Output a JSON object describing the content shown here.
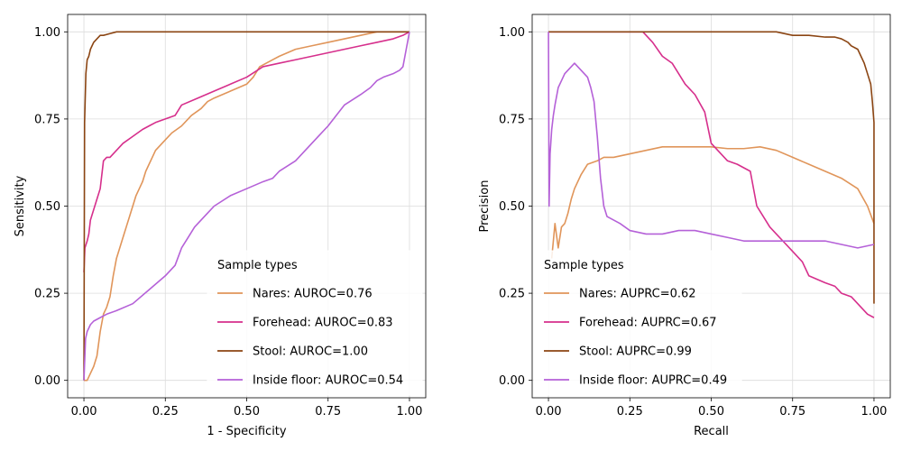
{
  "chart_data": [
    {
      "type": "line",
      "title": "",
      "xlabel": "1 - Specificity",
      "ylabel": "Sensitivity",
      "xlim": [
        -0.05,
        1.05
      ],
      "ylim": [
        -0.05,
        1.05
      ],
      "xticks": [
        "0.00",
        "0.25",
        "0.50",
        "0.75",
        "1.00"
      ],
      "yticks": [
        "0.00",
        "0.25",
        "0.50",
        "0.75",
        "1.00"
      ],
      "grid": true,
      "legend_title": "Sample types",
      "legend_position": "lower-right",
      "series": [
        {
          "name": "Nares: AUROC=0.76",
          "color": "#e0955a",
          "x": [
            0,
            0.01,
            0.02,
            0.03,
            0.04,
            0.05,
            0.06,
            0.07,
            0.08,
            0.09,
            0.1,
            0.11,
            0.12,
            0.13,
            0.14,
            0.15,
            0.16,
            0.17,
            0.18,
            0.19,
            0.2,
            0.21,
            0.22,
            0.23,
            0.25,
            0.27,
            0.3,
            0.33,
            0.36,
            0.38,
            0.4,
            0.45,
            0.5,
            0.52,
            0.54,
            0.56,
            0.58,
            0.6,
            0.65,
            0.7,
            0.75,
            0.8,
            0.85,
            0.9,
            0.95,
            1.0
          ],
          "y": [
            0,
            0,
            0.02,
            0.04,
            0.07,
            0.14,
            0.19,
            0.21,
            0.24,
            0.3,
            0.35,
            0.38,
            0.41,
            0.44,
            0.47,
            0.5,
            0.53,
            0.55,
            0.57,
            0.6,
            0.62,
            0.64,
            0.66,
            0.67,
            0.69,
            0.71,
            0.73,
            0.76,
            0.78,
            0.8,
            0.81,
            0.83,
            0.85,
            0.87,
            0.9,
            0.91,
            0.92,
            0.93,
            0.95,
            0.96,
            0.97,
            0.98,
            0.99,
            1.0,
            1.0,
            1.0
          ]
        },
        {
          "name": "Forehead: AUROC=0.83",
          "color": "#d62f8c",
          "x": [
            0,
            0.003,
            0.01,
            0.015,
            0.02,
            0.03,
            0.04,
            0.05,
            0.06,
            0.07,
            0.08,
            0.1,
            0.12,
            0.15,
            0.18,
            0.2,
            0.22,
            0.25,
            0.28,
            0.3,
            0.35,
            0.4,
            0.45,
            0.5,
            0.55,
            0.6,
            0.65,
            0.7,
            0.75,
            0.8,
            0.85,
            0.9,
            0.95,
            0.98,
            1.0
          ],
          "y": [
            0.31,
            0.38,
            0.4,
            0.42,
            0.46,
            0.49,
            0.52,
            0.55,
            0.63,
            0.64,
            0.64,
            0.66,
            0.68,
            0.7,
            0.72,
            0.73,
            0.74,
            0.75,
            0.76,
            0.79,
            0.81,
            0.83,
            0.85,
            0.87,
            0.9,
            0.91,
            0.92,
            0.93,
            0.94,
            0.95,
            0.96,
            0.97,
            0.98,
            0.99,
            1.0
          ]
        },
        {
          "name": "Stool: AUROC=1.00",
          "color": "#8b4513",
          "x": [
            0,
            0.002,
            0.004,
            0.006,
            0.008,
            0.01,
            0.015,
            0.02,
            0.025,
            0.03,
            0.04,
            0.05,
            0.06,
            0.08,
            0.1,
            0.15,
            0.2,
            0.5,
            1.0
          ],
          "y": [
            0,
            0.74,
            0.81,
            0.88,
            0.9,
            0.92,
            0.93,
            0.95,
            0.96,
            0.97,
            0.98,
            0.99,
            0.99,
            0.995,
            1.0,
            1.0,
            1.0,
            1.0,
            1.0
          ]
        },
        {
          "name": "Inside floor: AUROC=0.54",
          "color": "#b561d8",
          "x": [
            0,
            0.005,
            0.01,
            0.015,
            0.02,
            0.03,
            0.05,
            0.07,
            0.1,
            0.15,
            0.2,
            0.25,
            0.28,
            0.3,
            0.32,
            0.34,
            0.36,
            0.38,
            0.4,
            0.45,
            0.5,
            0.55,
            0.58,
            0.6,
            0.65,
            0.68,
            0.7,
            0.72,
            0.75,
            0.8,
            0.85,
            0.88,
            0.9,
            0.92,
            0.95,
            0.97,
            0.98,
            0.99,
            1.0
          ],
          "y": [
            0,
            0.12,
            0.14,
            0.15,
            0.16,
            0.17,
            0.18,
            0.19,
            0.2,
            0.22,
            0.26,
            0.3,
            0.33,
            0.38,
            0.41,
            0.44,
            0.46,
            0.48,
            0.5,
            0.53,
            0.55,
            0.57,
            0.58,
            0.6,
            0.63,
            0.66,
            0.68,
            0.7,
            0.73,
            0.79,
            0.82,
            0.84,
            0.86,
            0.87,
            0.88,
            0.89,
            0.9,
            0.95,
            1.0
          ]
        }
      ]
    },
    {
      "type": "line",
      "title": "",
      "xlabel": "Recall",
      "ylabel": "Precision",
      "xlim": [
        -0.05,
        1.05
      ],
      "ylim": [
        -0.05,
        1.05
      ],
      "xticks": [
        "0.00",
        "0.25",
        "0.50",
        "0.75",
        "1.00"
      ],
      "yticks": [
        "0.00",
        "0.25",
        "0.50",
        "0.75",
        "1.00"
      ],
      "grid": true,
      "legend_title": "Sample types",
      "legend_position": "lower-left",
      "series": [
        {
          "name": "Nares: AUPRC=0.62",
          "color": "#e0955a",
          "x": [
            0.01,
            0.015,
            0.02,
            0.03,
            0.04,
            0.05,
            0.06,
            0.07,
            0.08,
            0.1,
            0.12,
            0.15,
            0.17,
            0.2,
            0.25,
            0.3,
            0.35,
            0.4,
            0.45,
            0.5,
            0.55,
            0.6,
            0.65,
            0.7,
            0.75,
            0.8,
            0.85,
            0.9,
            0.95,
            0.98,
            1.0
          ],
          "y": [
            0.35,
            0.4,
            0.45,
            0.38,
            0.44,
            0.45,
            0.48,
            0.52,
            0.55,
            0.59,
            0.62,
            0.63,
            0.64,
            0.64,
            0.65,
            0.66,
            0.67,
            0.67,
            0.67,
            0.67,
            0.665,
            0.665,
            0.67,
            0.66,
            0.64,
            0.62,
            0.6,
            0.58,
            0.55,
            0.5,
            0.45
          ]
        },
        {
          "name": "Forehead: AUPRC=0.67",
          "color": "#d62f8c",
          "x": [
            0,
            0.05,
            0.1,
            0.2,
            0.29,
            0.3,
            0.32,
            0.35,
            0.38,
            0.4,
            0.42,
            0.45,
            0.48,
            0.5,
            0.52,
            0.55,
            0.58,
            0.6,
            0.62,
            0.64,
            0.66,
            0.68,
            0.7,
            0.72,
            0.75,
            0.78,
            0.8,
            0.85,
            0.88,
            0.9,
            0.93,
            0.95,
            0.98,
            1.0
          ],
          "y": [
            1.0,
            1.0,
            1.0,
            1.0,
            1.0,
            0.99,
            0.97,
            0.93,
            0.91,
            0.88,
            0.85,
            0.82,
            0.77,
            0.68,
            0.66,
            0.63,
            0.62,
            0.61,
            0.6,
            0.5,
            0.47,
            0.44,
            0.42,
            0.4,
            0.37,
            0.34,
            0.3,
            0.28,
            0.27,
            0.25,
            0.24,
            0.22,
            0.19,
            0.18
          ]
        },
        {
          "name": "Stool: AUPRC=0.99",
          "color": "#8b4513",
          "x": [
            0,
            0.1,
            0.3,
            0.5,
            0.7,
            0.75,
            0.8,
            0.85,
            0.88,
            0.9,
            0.92,
            0.93,
            0.95,
            0.96,
            0.97,
            0.98,
            0.99,
            0.995,
            1.0,
            1.0,
            1.0
          ],
          "y": [
            1.0,
            1.0,
            1.0,
            1.0,
            1.0,
            0.99,
            0.99,
            0.985,
            0.985,
            0.98,
            0.97,
            0.96,
            0.95,
            0.93,
            0.91,
            0.88,
            0.85,
            0.8,
            0.74,
            0.5,
            0.22
          ]
        },
        {
          "name": "Inside floor: AUPRC=0.49",
          "color": "#b561d8",
          "x": [
            0,
            0.002,
            0.005,
            0.01,
            0.015,
            0.02,
            0.03,
            0.04,
            0.05,
            0.06,
            0.07,
            0.08,
            0.09,
            0.1,
            0.11,
            0.12,
            0.13,
            0.14,
            0.15,
            0.16,
            0.17,
            0.18,
            0.2,
            0.22,
            0.25,
            0.3,
            0.35,
            0.4,
            0.45,
            0.5,
            0.55,
            0.6,
            0.65,
            0.7,
            0.75,
            0.8,
            0.85,
            0.9,
            0.95,
            1.0
          ],
          "y": [
            1.0,
            0.5,
            0.65,
            0.72,
            0.76,
            0.79,
            0.84,
            0.86,
            0.88,
            0.89,
            0.9,
            0.91,
            0.9,
            0.89,
            0.88,
            0.87,
            0.84,
            0.8,
            0.7,
            0.58,
            0.5,
            0.47,
            0.46,
            0.45,
            0.43,
            0.42,
            0.42,
            0.43,
            0.43,
            0.42,
            0.41,
            0.4,
            0.4,
            0.4,
            0.4,
            0.4,
            0.4,
            0.39,
            0.38,
            0.39
          ]
        }
      ]
    }
  ]
}
